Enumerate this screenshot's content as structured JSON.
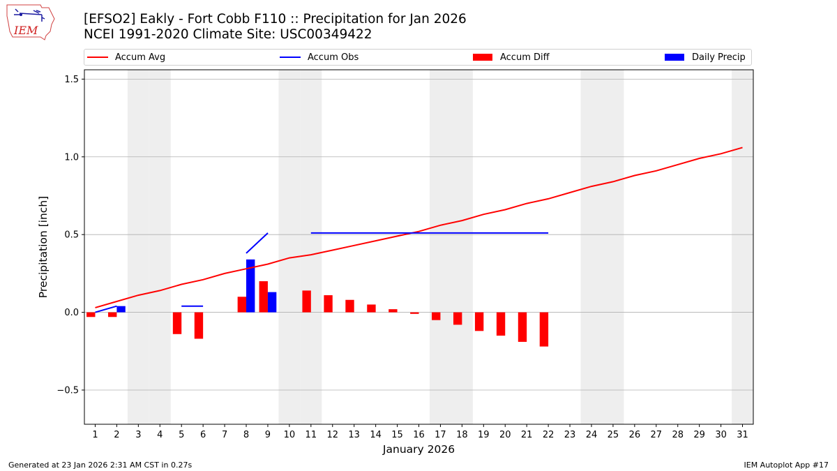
{
  "logo": {
    "text": "IEM"
  },
  "header": {
    "title_line1": "[EFSO2] Eakly - Fort Cobb F110 :: Precipitation for Jan 2026",
    "title_line2": "NCEI 1991-2020 Climate Site: USC00349422"
  },
  "legend": {
    "accum_avg": "Accum Avg",
    "accum_obs": "Accum Obs",
    "accum_diff": "Accum Diff",
    "daily_precip": "Daily Precip"
  },
  "colors": {
    "accum_avg": "#ff0000",
    "accum_obs": "#0000ff",
    "accum_diff": "#ff0000",
    "daily_precip": "#0000ff",
    "weekend": "#eeeeee",
    "grid": "#b0b0b0"
  },
  "chart_data": {
    "type": "bar",
    "title": "[EFSO2] Eakly - Fort Cobb F110 :: Precipitation for Jan 2026",
    "subtitle": "NCEI 1991-2020 Climate Site: USC00349422",
    "xlabel": "January 2026",
    "ylabel": "Precipitation [inch]",
    "ylim": [
      -0.72,
      1.56
    ],
    "yticks": [
      -0.5,
      0.0,
      0.5,
      1.0,
      1.5
    ],
    "ytick_labels": [
      "−0.5",
      "0.0",
      "0.5",
      "1.0",
      "1.5"
    ],
    "grid": "horizontal",
    "legend_position": "top",
    "days": [
      1,
      2,
      3,
      4,
      5,
      6,
      7,
      8,
      9,
      10,
      11,
      12,
      13,
      14,
      15,
      16,
      17,
      18,
      19,
      20,
      21,
      22,
      23,
      24,
      25,
      26,
      27,
      28,
      29,
      30,
      31
    ],
    "weekend_days": [
      3,
      4,
      10,
      11,
      17,
      18,
      24,
      25,
      31
    ],
    "series": [
      {
        "name": "Accum Avg",
        "kind": "line",
        "values": [
          0.03,
          0.07,
          0.11,
          0.14,
          0.18,
          0.21,
          0.25,
          0.28,
          0.31,
          0.35,
          0.37,
          0.4,
          0.43,
          0.46,
          0.49,
          0.52,
          0.56,
          0.59,
          0.63,
          0.66,
          0.7,
          0.73,
          0.77,
          0.81,
          0.84,
          0.88,
          0.91,
          0.95,
          0.99,
          1.02,
          1.06
        ]
      },
      {
        "name": "Accum Obs",
        "kind": "line",
        "values": [
          0.0,
          0.04,
          null,
          null,
          0.04,
          0.04,
          null,
          0.38,
          0.51,
          null,
          0.51,
          0.51,
          0.51,
          0.51,
          0.51,
          0.51,
          0.51,
          0.51,
          0.51,
          0.51,
          0.51,
          0.51,
          null,
          null,
          null,
          null,
          null,
          null,
          null,
          null,
          null
        ]
      },
      {
        "name": "Accum Diff",
        "kind": "bar",
        "values": [
          -0.03,
          -0.03,
          null,
          null,
          -0.14,
          -0.17,
          null,
          0.1,
          0.2,
          null,
          0.14,
          0.11,
          0.08,
          0.05,
          0.02,
          -0.01,
          -0.05,
          -0.08,
          -0.12,
          -0.15,
          -0.19,
          -0.22,
          null,
          null,
          null,
          null,
          null,
          null,
          null,
          null,
          null
        ]
      },
      {
        "name": "Daily Precip",
        "kind": "bar",
        "values": [
          0,
          0.04,
          null,
          null,
          0,
          0,
          null,
          0.34,
          0.13,
          null,
          0,
          0,
          0,
          0,
          0,
          0,
          0,
          0,
          0,
          0,
          0,
          0,
          null,
          null,
          null,
          null,
          null,
          null,
          null,
          null,
          null
        ]
      }
    ]
  },
  "footer": {
    "generated": "Generated at 23 Jan 2026 2:31 AM CST in 0.27s",
    "app": "IEM Autoplot App #17"
  }
}
